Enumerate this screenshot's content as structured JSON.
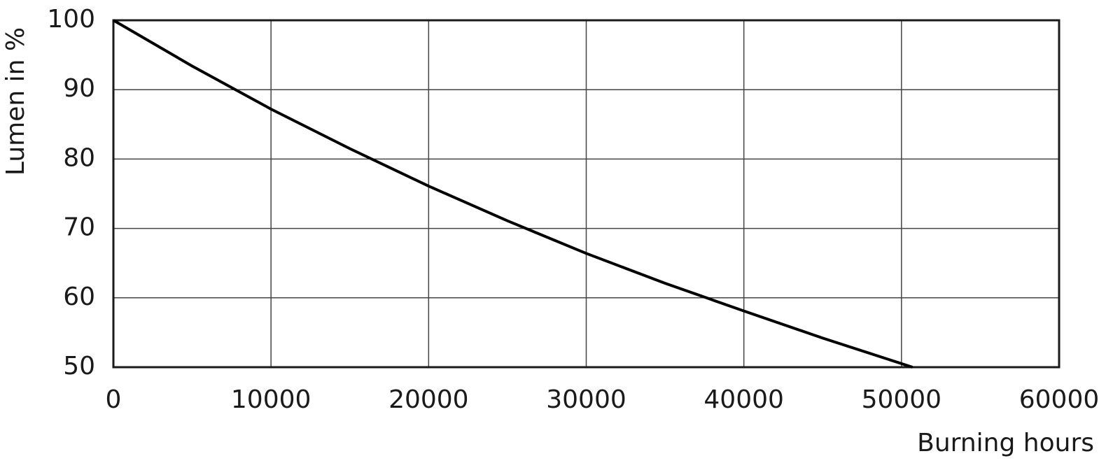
{
  "chart_data": {
    "type": "line",
    "x_label": "Burning hours",
    "y_label": "Lumen in %",
    "x": [
      0,
      5000,
      10000,
      15000,
      20000,
      25000,
      30000,
      35000,
      40000,
      45000,
      50700
    ],
    "values": [
      100,
      93.4,
      87.2,
      81.5,
      76.1,
      71.1,
      66.4,
      62.1,
      58.1,
      54.2,
      50
    ],
    "color": "#000000",
    "xlim": [
      0,
      60000
    ],
    "xticks": [
      0,
      10000,
      20000,
      30000,
      40000,
      50000,
      60000
    ],
    "ylim": [
      50,
      100
    ],
    "yticks": [
      50,
      60,
      70,
      80,
      90,
      100
    ],
    "grid": true
  }
}
